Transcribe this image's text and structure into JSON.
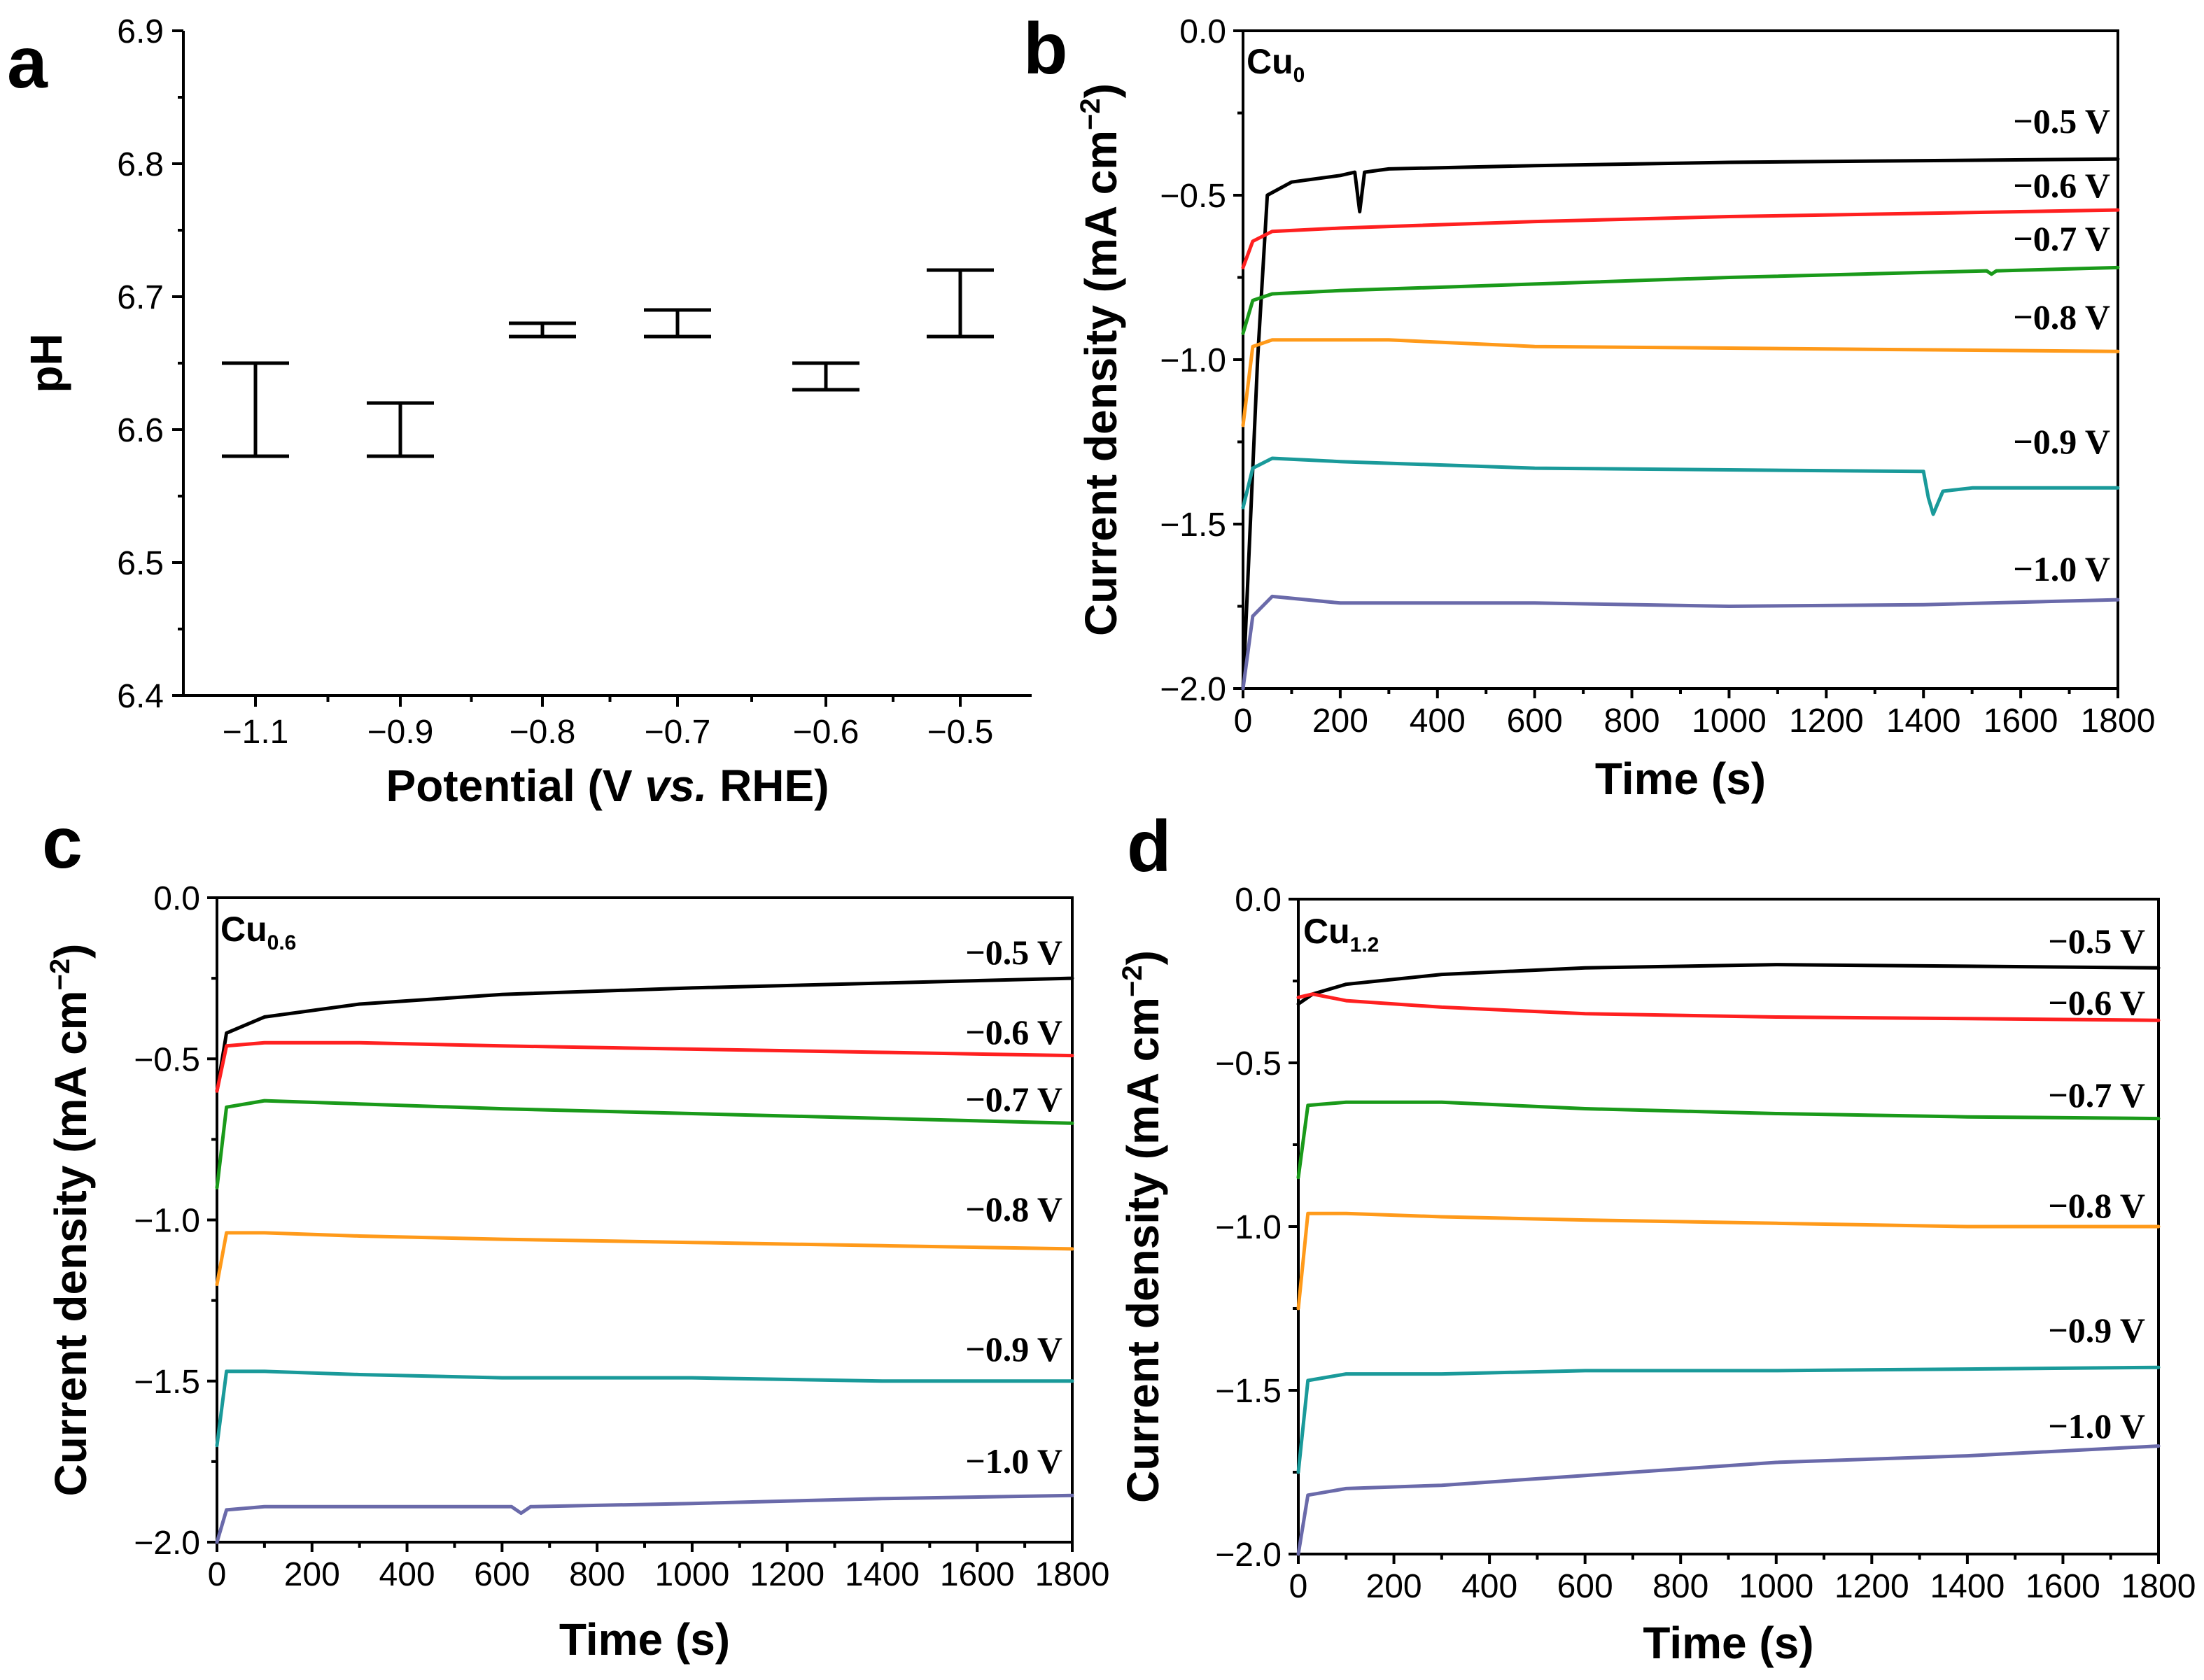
{
  "chart_data": [
    {
      "panel": "a",
      "type": "scatter",
      "xlabel": "Potential (V vs. RHE)",
      "xlabel_parts": [
        "Potential (V ",
        "vs.",
        " RHE)"
      ],
      "ylabel": "pH",
      "ylim": [
        6.4,
        6.9
      ],
      "yticks": [
        "6.4",
        "6.5",
        "6.6",
        "6.7",
        "6.8",
        "6.9"
      ],
      "categories": [
        "−1.1",
        "−0.9",
        "−0.8",
        "−0.7",
        "−0.6",
        "−0.5"
      ],
      "error_bars": [
        {
          "x": "−1.1",
          "low": 6.58,
          "high": 6.65
        },
        {
          "x": "−0.9",
          "low": 6.58,
          "high": 6.62
        },
        {
          "x": "−0.8",
          "low": 6.67,
          "high": 6.68
        },
        {
          "x": "−0.7",
          "low": 6.67,
          "high": 6.69
        },
        {
          "x": "−0.6",
          "low": 6.63,
          "high": 6.65
        },
        {
          "x": "−0.5",
          "low": 6.67,
          "high": 6.72
        }
      ]
    },
    {
      "panel": "b",
      "type": "line",
      "sample": "Cu",
      "sample_sub": "0",
      "xlabel": "Time (s)",
      "ylabel": "Current density (mA cm",
      "ylabel_sup": "−2",
      "ylabel_end": ")",
      "xlim": [
        0,
        1800
      ],
      "ylim": [
        -2.0,
        0.0
      ],
      "xticks": [
        "0",
        "200",
        "400",
        "600",
        "800",
        "1000",
        "1200",
        "1400",
        "1600",
        "1800"
      ],
      "yticks": [
        "−2.0",
        "−1.5",
        "−1.0",
        "−0.5",
        "0.0"
      ],
      "series": [
        {
          "name": "−0.5 V",
          "color": "#000000",
          "points": [
            [
              0,
              -2.0
            ],
            [
              30,
              -1.0
            ],
            [
              50,
              -0.5
            ],
            [
              100,
              -0.46
            ],
            [
              200,
              -0.44
            ],
            [
              230,
              -0.43
            ],
            [
              240,
              -0.55
            ],
            [
              250,
              -0.43
            ],
            [
              300,
              -0.42
            ],
            [
              600,
              -0.41
            ],
            [
              1000,
              -0.4
            ],
            [
              1400,
              -0.395
            ],
            [
              1800,
              -0.39
            ]
          ]
        },
        {
          "name": "−0.6 V",
          "color": "#ff2020",
          "points": [
            [
              0,
              -0.72
            ],
            [
              20,
              -0.64
            ],
            [
              60,
              -0.61
            ],
            [
              200,
              -0.6
            ],
            [
              600,
              -0.58
            ],
            [
              1000,
              -0.565
            ],
            [
              1400,
              -0.555
            ],
            [
              1800,
              -0.545
            ]
          ]
        },
        {
          "name": "−0.7 V",
          "color": "#1a9a1a",
          "points": [
            [
              0,
              -0.92
            ],
            [
              20,
              -0.82
            ],
            [
              60,
              -0.8
            ],
            [
              200,
              -0.79
            ],
            [
              600,
              -0.77
            ],
            [
              1000,
              -0.75
            ],
            [
              1400,
              -0.735
            ],
            [
              1530,
              -0.73
            ],
            [
              1540,
              -0.74
            ],
            [
              1550,
              -0.73
            ],
            [
              1800,
              -0.72
            ]
          ]
        },
        {
          "name": "−0.8 V",
          "color": "#ff9a1a",
          "points": [
            [
              0,
              -1.2
            ],
            [
              20,
              -0.96
            ],
            [
              60,
              -0.94
            ],
            [
              300,
              -0.94
            ],
            [
              600,
              -0.96
            ],
            [
              1000,
              -0.965
            ],
            [
              1400,
              -0.97
            ],
            [
              1800,
              -0.975
            ]
          ]
        },
        {
          "name": "−0.9 V",
          "color": "#1a9a9a",
          "points": [
            [
              0,
              -1.45
            ],
            [
              20,
              -1.33
            ],
            [
              60,
              -1.3
            ],
            [
              200,
              -1.31
            ],
            [
              600,
              -1.33
            ],
            [
              1000,
              -1.335
            ],
            [
              1400,
              -1.34
            ],
            [
              1410,
              -1.42
            ],
            [
              1420,
              -1.47
            ],
            [
              1440,
              -1.4
            ],
            [
              1500,
              -1.39
            ],
            [
              1800,
              -1.39
            ]
          ]
        },
        {
          "name": "−1.0 V",
          "color": "#6a6aaa",
          "points": [
            [
              0,
              -2.0
            ],
            [
              20,
              -1.78
            ],
            [
              60,
              -1.72
            ],
            [
              200,
              -1.74
            ],
            [
              600,
              -1.74
            ],
            [
              1000,
              -1.75
            ],
            [
              1400,
              -1.745
            ],
            [
              1800,
              -1.73
            ]
          ]
        }
      ]
    },
    {
      "panel": "c",
      "type": "line",
      "sample": "Cu",
      "sample_sub": "0.6",
      "xlabel": "Time (s)",
      "ylabel": "Current density (mA cm",
      "ylabel_sup": "−2",
      "ylabel_end": ")",
      "xlim": [
        0,
        1800
      ],
      "ylim": [
        -2.0,
        0.0
      ],
      "xticks": [
        "0",
        "200",
        "400",
        "600",
        "800",
        "1000",
        "1200",
        "1400",
        "1600",
        "1800"
      ],
      "yticks": [
        "−2.0",
        "−1.5",
        "−1.0",
        "−0.5",
        "0.0"
      ],
      "series": [
        {
          "name": "−0.5 V",
          "color": "#000000",
          "points": [
            [
              0,
              -0.6
            ],
            [
              20,
              -0.42
            ],
            [
              100,
              -0.37
            ],
            [
              300,
              -0.33
            ],
            [
              600,
              -0.3
            ],
            [
              1000,
              -0.28
            ],
            [
              1400,
              -0.265
            ],
            [
              1800,
              -0.25
            ]
          ]
        },
        {
          "name": "−0.6 V",
          "color": "#ff2020",
          "points": [
            [
              0,
              -0.6
            ],
            [
              20,
              -0.46
            ],
            [
              100,
              -0.45
            ],
            [
              300,
              -0.45
            ],
            [
              600,
              -0.46
            ],
            [
              1000,
              -0.47
            ],
            [
              1400,
              -0.48
            ],
            [
              1800,
              -0.49
            ]
          ]
        },
        {
          "name": "−0.7 V",
          "color": "#1a9a1a",
          "points": [
            [
              0,
              -0.9
            ],
            [
              20,
              -0.65
            ],
            [
              100,
              -0.63
            ],
            [
              300,
              -0.64
            ],
            [
              600,
              -0.655
            ],
            [
              1000,
              -0.67
            ],
            [
              1400,
              -0.685
            ],
            [
              1800,
              -0.7
            ]
          ]
        },
        {
          "name": "−0.8 V",
          "color": "#ff9a1a",
          "points": [
            [
              0,
              -1.2
            ],
            [
              20,
              -1.04
            ],
            [
              100,
              -1.04
            ],
            [
              300,
              -1.05
            ],
            [
              600,
              -1.06
            ],
            [
              1000,
              -1.07
            ],
            [
              1400,
              -1.08
            ],
            [
              1800,
              -1.09
            ]
          ]
        },
        {
          "name": "−0.9 V",
          "color": "#1a9a9a",
          "points": [
            [
              0,
              -1.7
            ],
            [
              20,
              -1.47
            ],
            [
              100,
              -1.47
            ],
            [
              300,
              -1.48
            ],
            [
              600,
              -1.49
            ],
            [
              1000,
              -1.49
            ],
            [
              1400,
              -1.5
            ],
            [
              1800,
              -1.5
            ]
          ]
        },
        {
          "name": "−1.0 V",
          "color": "#6a6aaa",
          "points": [
            [
              0,
              -2.0
            ],
            [
              20,
              -1.9
            ],
            [
              100,
              -1.89
            ],
            [
              300,
              -1.89
            ],
            [
              620,
              -1.89
            ],
            [
              640,
              -1.91
            ],
            [
              660,
              -1.89
            ],
            [
              1000,
              -1.88
            ],
            [
              1400,
              -1.865
            ],
            [
              1800,
              -1.855
            ]
          ]
        }
      ]
    },
    {
      "panel": "d",
      "type": "line",
      "sample": "Cu",
      "sample_sub": "1.2",
      "xlabel": "Time (s)",
      "ylabel": "Current density (mA cm",
      "ylabel_sup": "−2",
      "ylabel_end": ")",
      "xlim": [
        0,
        1800
      ],
      "ylim": [
        -2.0,
        0.0
      ],
      "xticks": [
        "0",
        "200",
        "400",
        "600",
        "800",
        "1000",
        "1200",
        "1400",
        "1600",
        "1800"
      ],
      "yticks": [
        "−2.0",
        "−1.5",
        "−1.0",
        "−0.5",
        "0.0"
      ],
      "series": [
        {
          "name": "−0.5 V",
          "color": "#000000",
          "points": [
            [
              0,
              -0.32
            ],
            [
              30,
              -0.29
            ],
            [
              100,
              -0.26
            ],
            [
              300,
              -0.23
            ],
            [
              600,
              -0.21
            ],
            [
              1000,
              -0.2
            ],
            [
              1400,
              -0.205
            ],
            [
              1800,
              -0.21
            ]
          ]
        },
        {
          "name": "−0.6 V",
          "color": "#ff2020",
          "points": [
            [
              0,
              -0.3
            ],
            [
              30,
              -0.29
            ],
            [
              100,
              -0.31
            ],
            [
              300,
              -0.33
            ],
            [
              600,
              -0.35
            ],
            [
              1000,
              -0.36
            ],
            [
              1400,
              -0.365
            ],
            [
              1800,
              -0.37
            ]
          ]
        },
        {
          "name": "−0.7 V",
          "color": "#1a9a1a",
          "points": [
            [
              0,
              -0.85
            ],
            [
              20,
              -0.63
            ],
            [
              100,
              -0.62
            ],
            [
              300,
              -0.62
            ],
            [
              600,
              -0.64
            ],
            [
              1000,
              -0.655
            ],
            [
              1400,
              -0.665
            ],
            [
              1800,
              -0.67
            ]
          ]
        },
        {
          "name": "−0.8 V",
          "color": "#ff9a1a",
          "points": [
            [
              0,
              -1.25
            ],
            [
              20,
              -0.96
            ],
            [
              100,
              -0.96
            ],
            [
              300,
              -0.97
            ],
            [
              600,
              -0.98
            ],
            [
              1000,
              -0.99
            ],
            [
              1400,
              -1.0
            ],
            [
              1800,
              -1.0
            ]
          ]
        },
        {
          "name": "−0.9 V",
          "color": "#1a9a9a",
          "points": [
            [
              0,
              -1.75
            ],
            [
              20,
              -1.47
            ],
            [
              100,
              -1.45
            ],
            [
              300,
              -1.45
            ],
            [
              600,
              -1.44
            ],
            [
              1000,
              -1.44
            ],
            [
              1400,
              -1.435
            ],
            [
              1800,
              -1.43
            ]
          ]
        },
        {
          "name": "−1.0 V",
          "color": "#6a6aaa",
          "points": [
            [
              0,
              -2.0
            ],
            [
              20,
              -1.82
            ],
            [
              100,
              -1.8
            ],
            [
              300,
              -1.79
            ],
            [
              600,
              -1.76
            ],
            [
              1000,
              -1.72
            ],
            [
              1400,
              -1.7
            ],
            [
              1800,
              -1.67
            ]
          ]
        }
      ]
    }
  ]
}
